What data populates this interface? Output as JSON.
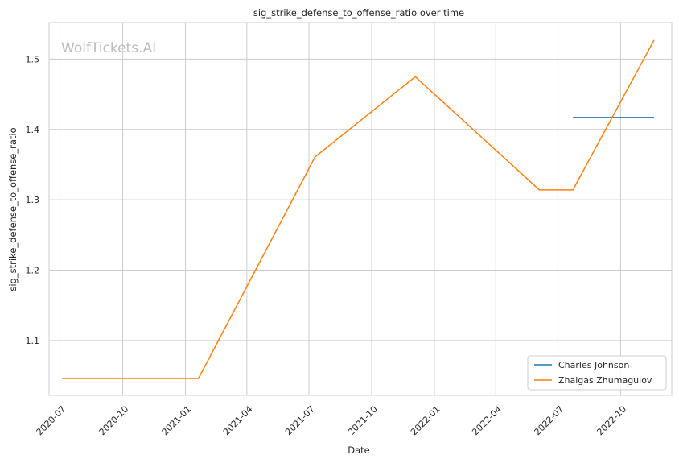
{
  "chart_data": {
    "type": "line",
    "title": "sig_strike_defense_to_offense_ratio over time",
    "xlabel": "Date",
    "ylabel": "sig_strike_defense_to_offense_ratio",
    "watermark": "WolfTickets.AI",
    "x_tick_labels": [
      "2020-07",
      "2020-10",
      "2021-01",
      "2021-04",
      "2021-07",
      "2021-10",
      "2022-01",
      "2022-04",
      "2022-07",
      "2022-10"
    ],
    "y_tick_labels": [
      "1.1",
      "1.2",
      "1.3",
      "1.4",
      "1.5"
    ],
    "xlim": [
      "2020-06-15",
      "2022-12-15"
    ],
    "ylim": [
      1.022,
      1.552
    ],
    "grid": true,
    "legend_position": "lower-right",
    "series": [
      {
        "name": "Charles Johnson",
        "color": "#1f77b4",
        "points": [
          {
            "x": "2022-07-23",
            "y": 1.417
          },
          {
            "x": "2022-11-19",
            "y": 1.417
          }
        ]
      },
      {
        "name": "Zhalgas Zhumagulov",
        "color": "#ff7f0e",
        "points": [
          {
            "x": "2020-07-04",
            "y": 1.046
          },
          {
            "x": "2021-01-20",
            "y": 1.046
          },
          {
            "x": "2021-07-10",
            "y": 1.361
          },
          {
            "x": "2021-12-04",
            "y": 1.475
          },
          {
            "x": "2022-06-04",
            "y": 1.314
          },
          {
            "x": "2022-07-23",
            "y": 1.314
          },
          {
            "x": "2022-11-19",
            "y": 1.527
          }
        ]
      }
    ]
  }
}
